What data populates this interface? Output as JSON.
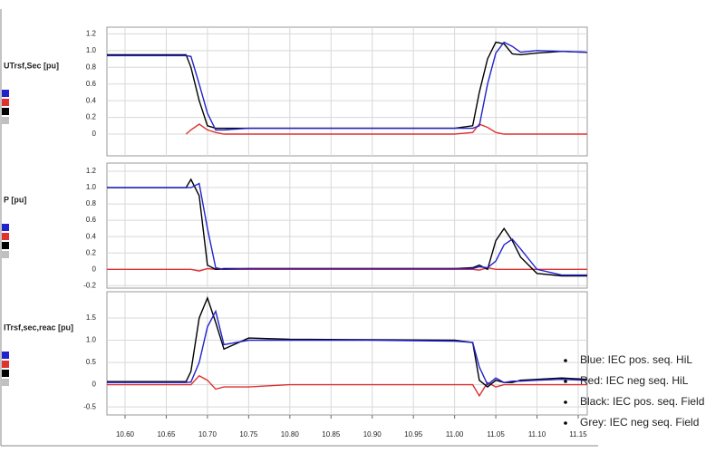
{
  "charts_x": null,
  "chart_data": [
    {
      "type": "line",
      "ylabel": "UTrsf,Sec [pu]",
      "x": [
        10.578,
        10.6,
        10.65,
        10.674,
        10.68,
        10.69,
        10.7,
        10.71,
        10.72,
        10.75,
        10.8,
        10.9,
        11.0,
        11.022,
        11.03,
        11.04,
        11.05,
        11.06,
        11.07,
        11.08,
        11.1,
        11.13,
        11.161
      ],
      "xlim": [
        10.578,
        11.161
      ],
      "xticks": [
        10.6,
        10.65,
        10.7,
        10.75,
        10.8,
        10.85,
        10.9,
        10.95,
        11.0,
        11.05,
        11.1,
        11.15
      ],
      "ylim": [
        -0.26,
        1.28
      ],
      "yticks": [
        {
          "value": 1.2,
          "label": "1.2"
        },
        {
          "value": 1,
          "label": "1.0"
        },
        0.8,
        0.6,
        0.4,
        0.2,
        0
      ],
      "grid": true,
      "series": [
        {
          "color": "#e03030",
          "values": [
            null,
            null,
            null,
            0,
            0.05,
            0.12,
            0.05,
            0.02,
            0,
            0,
            0,
            0,
            0,
            0.02,
            0.12,
            0.08,
            0.02,
            0,
            0,
            0,
            0,
            0,
            0
          ]
        },
        {
          "color": "#000000",
          "values": [
            0.95,
            0.95,
            0.95,
            0.95,
            0.8,
            0.4,
            0.1,
            0.07,
            0.07,
            0.07,
            0.07,
            0.07,
            0.07,
            0.1,
            0.5,
            0.9,
            1.1,
            1.08,
            0.96,
            0.95,
            0.97,
            0.99,
            0.98
          ]
        },
        {
          "color": "#2222cc",
          "values": [
            0.94,
            0.94,
            0.94,
            0.94,
            0.93,
            0.6,
            0.25,
            0.05,
            0.05,
            0.07,
            0.07,
            0.07,
            0.07,
            0.07,
            0.1,
            0.6,
            0.97,
            1.1,
            1.05,
            0.98,
            1.0,
            0.99,
            0.98
          ]
        }
      ]
    },
    {
      "type": "line",
      "ylabel": "P [pu]",
      "x": [
        10.578,
        10.6,
        10.65,
        10.674,
        10.68,
        10.69,
        10.7,
        10.71,
        10.72,
        10.75,
        10.8,
        10.9,
        11.0,
        11.022,
        11.03,
        11.04,
        11.05,
        11.06,
        11.07,
        11.08,
        11.1,
        11.13,
        11.161
      ],
      "xlim": [
        10.578,
        11.161
      ],
      "xticks": [
        10.6,
        10.65,
        10.7,
        10.75,
        10.8,
        10.85,
        10.9,
        10.95,
        11.0,
        11.05,
        11.1,
        11.15
      ],
      "ylim": [
        -0.23,
        1.3
      ],
      "yticks": [
        1.2,
        {
          "value": 1,
          "label": "1.0"
        },
        0.8,
        0.6,
        0.4,
        0.2,
        0,
        -0.2
      ],
      "grid": true,
      "series": [
        {
          "color": "#e03030",
          "values": [
            0,
            0,
            0,
            0,
            0,
            -0.02,
            0.01,
            0,
            0,
            0,
            0,
            0,
            0,
            0,
            -0.01,
            0.02,
            0,
            0,
            0,
            0,
            0,
            0,
            0
          ]
        },
        {
          "color": "#000000",
          "values": [
            1,
            1,
            1,
            1,
            1.1,
            0.9,
            0.05,
            0,
            0.01,
            0.01,
            0.01,
            0.01,
            0.01,
            0.02,
            0.05,
            0,
            0.35,
            0.5,
            0.35,
            0.15,
            -0.05,
            -0.08,
            -0.08
          ]
        },
        {
          "color": "#2222cc",
          "values": [
            1,
            1,
            1,
            1,
            1,
            1.05,
            0.5,
            0.02,
            0,
            0.01,
            0.01,
            0.01,
            0.01,
            0.01,
            0.03,
            0.02,
            0.1,
            0.3,
            0.37,
            0.25,
            0,
            -0.07,
            -0.07
          ]
        }
      ]
    },
    {
      "type": "line",
      "ylabel": "ITrsf,sec,reac [pu]",
      "x": [
        10.578,
        10.6,
        10.65,
        10.674,
        10.68,
        10.69,
        10.7,
        10.71,
        10.72,
        10.75,
        10.8,
        10.9,
        11.0,
        11.022,
        11.03,
        11.04,
        11.05,
        11.06,
        11.07,
        11.08,
        11.1,
        11.13,
        11.161
      ],
      "xlim": [
        10.578,
        11.161
      ],
      "xticks": [
        {
          "value": 10.6,
          "label": "10.60"
        },
        {
          "value": 10.65,
          "label": "10.65"
        },
        {
          "value": 10.7,
          "label": "10.70"
        },
        {
          "value": 10.75,
          "label": "10.75"
        },
        {
          "value": 10.8,
          "label": "10.80"
        },
        {
          "value": 10.85,
          "label": "10.85"
        },
        {
          "value": 10.9,
          "label": "10.90"
        },
        {
          "value": 10.95,
          "label": "10.95"
        },
        {
          "value": 11,
          "label": "11.00"
        },
        {
          "value": 11.05,
          "label": "11.05"
        },
        {
          "value": 11.1,
          "label": "11.10"
        },
        {
          "value": 11.15,
          "label": "11.15"
        }
      ],
      "ylim": [
        -0.68,
        2.09
      ],
      "yticks": [
        1.5,
        {
          "value": 1,
          "label": "1.0"
        },
        0.5,
        0,
        -0.5
      ],
      "grid": true,
      "series": [
        {
          "color": "#e03030",
          "values": [
            0,
            0,
            0,
            0,
            0,
            0.2,
            0.1,
            -0.1,
            -0.05,
            -0.05,
            0,
            0,
            0,
            0,
            -0.25,
            0.05,
            -0.05,
            0,
            0,
            0,
            0,
            0,
            0
          ]
        },
        {
          "color": "#000000",
          "values": [
            0.07,
            0.07,
            0.07,
            0.07,
            0.3,
            1.5,
            1.95,
            1.4,
            0.8,
            1.05,
            1.02,
            1.01,
            1,
            0.95,
            0.1,
            -0.05,
            0.1,
            0.05,
            0.05,
            0.1,
            0.12,
            0.15,
            0.12
          ]
        },
        {
          "color": "#2222cc",
          "values": [
            0.05,
            0.05,
            0.05,
            0.05,
            0.06,
            0.5,
            1.3,
            1.65,
            0.9,
            1,
            1,
            1,
            0.98,
            0.95,
            0.4,
            0,
            0.15,
            0.05,
            0.08,
            0.08,
            0.1,
            0.12,
            0.1
          ]
        }
      ]
    }
  ],
  "legend": [
    {
      "label": "Blue: IEC pos. seq. HiL",
      "color": "#2222cc"
    },
    {
      "label": "Red: IEC neg seq. HiL",
      "color": "#e03030"
    },
    {
      "label": "Black: IEC pos. seq. Field",
      "color": "#000000"
    },
    {
      "label": "Grey: IEC neg seq. Field",
      "color": "#c0c0c0"
    }
  ]
}
